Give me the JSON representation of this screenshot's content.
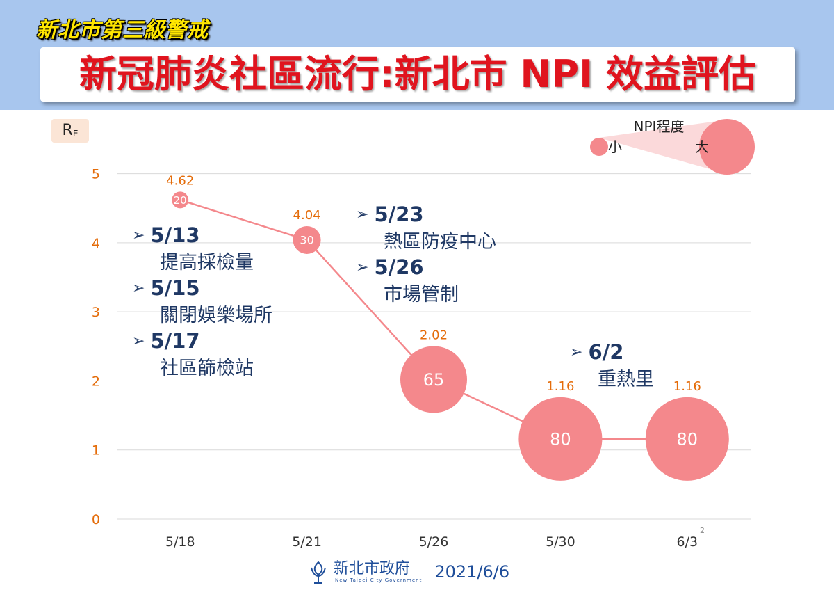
{
  "header": {
    "alert_title": "新北市第三級警戒",
    "main_title": "新冠肺炎社區流行:新北市 NPI 效益評估"
  },
  "legend": {
    "title": "NPI程度",
    "small_label": "小",
    "large_label": "大"
  },
  "annotations": [
    {
      "date": "5/13",
      "desc": "提高採檢量"
    },
    {
      "date": "5/15",
      "desc": "關閉娛樂場所"
    },
    {
      "date": "5/17",
      "desc": "社區篩檢站"
    },
    {
      "date": "5/23",
      "desc": "熱區防疫中心"
    },
    {
      "date": "5/26",
      "desc": "市場管制"
    },
    {
      "date": "6/2",
      "desc": "重熱里"
    }
  ],
  "footer": {
    "org": "新北市政府",
    "org_en": "New Taipei City Government",
    "date": "2021/6/6"
  },
  "page_number": "2",
  "colors": {
    "header_bg": "#a8c6ee",
    "title_red": "#e0141e",
    "alert_yellow": "#ffe600",
    "series_pink": "#f4888c",
    "value_orange": "#e46c0a",
    "annotation_navy": "#1f3864"
  },
  "chart_data": {
    "type": "line",
    "ylabel": "RE",
    "ylabel_main": "R",
    "ylabel_sub": "E",
    "categories": [
      "5/18",
      "5/21",
      "5/26",
      "5/30",
      "6/3"
    ],
    "series": [
      {
        "values": [
          4.62,
          4.04,
          2.02,
          1.16,
          1.16
        ],
        "value_labels": [
          "4.62",
          "4.04",
          "2.02",
          "1.16",
          "1.16"
        ],
        "npi_level": [
          20,
          30,
          65,
          80,
          80
        ]
      }
    ],
    "ylim": [
      0,
      5.5
    ],
    "yticks": [
      0,
      1,
      2,
      3,
      4,
      5
    ],
    "grid": true,
    "marker_size_encodes": "npi_level",
    "legend_placement": "top-right"
  }
}
